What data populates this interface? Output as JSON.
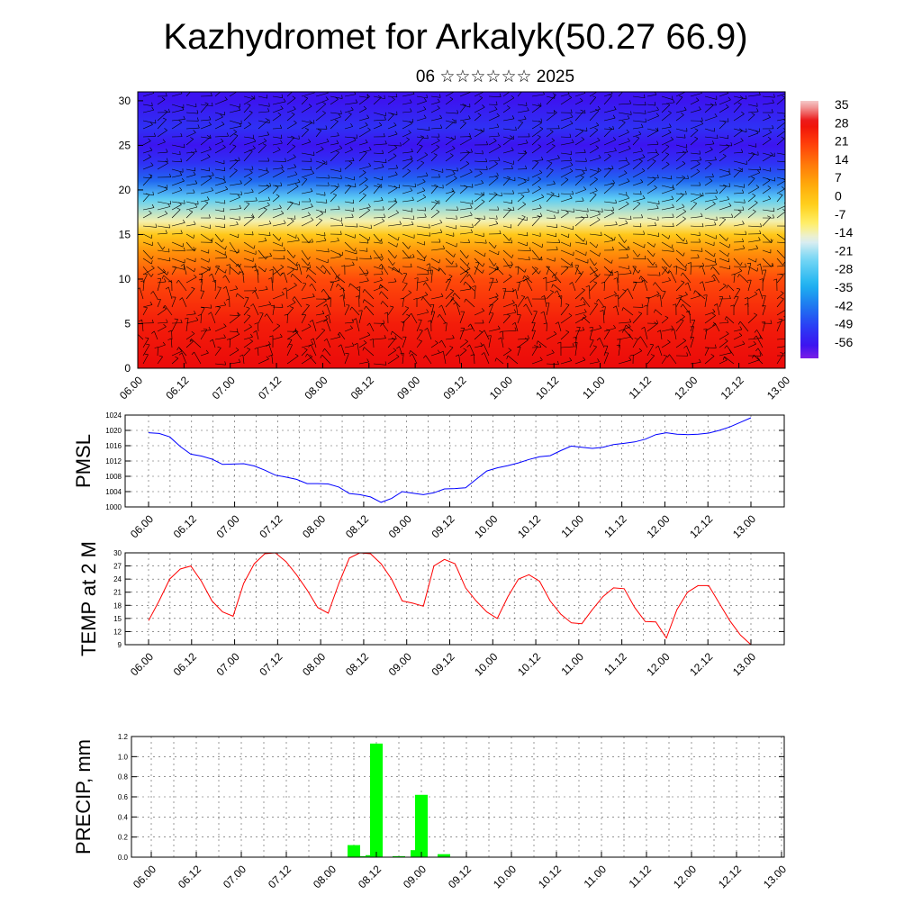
{
  "title": "Kazhydromet for Arkalyk(50.27 66.9)",
  "subtitle": "06 ☆☆☆☆☆☆ 2025",
  "time_labels": [
    "06.00",
    "06.12",
    "07.00",
    "07.12",
    "08.00",
    "08.12",
    "09.00",
    "09.12",
    "10.00",
    "10.12",
    "11.00",
    "11.12",
    "12.00",
    "12.12",
    "13.00"
  ],
  "chart_data": [
    {
      "type": "heatmap",
      "title": "",
      "xlabel": "",
      "ylabel": "",
      "x": [
        "06.00",
        "06.12",
        "07.00",
        "07.12",
        "08.00",
        "08.12",
        "09.00",
        "09.12",
        "10.00",
        "10.12",
        "11.00",
        "11.12",
        "12.00",
        "12.12",
        "13.00"
      ],
      "ylim": [
        0,
        31
      ],
      "yticks": [
        0,
        5,
        10,
        15,
        20,
        25,
        30
      ],
      "colorbar": {
        "labels": [
          "35",
          "28",
          "21",
          "14",
          "7",
          "0",
          "-7",
          "-14",
          "-21",
          "-28",
          "-35",
          "-42",
          "-49",
          "-56"
        ],
        "range": [
          -60,
          38
        ]
      },
      "temperature_profile": [
        {
          "height": 0,
          "value": 30
        },
        {
          "height": 5,
          "value": 27
        },
        {
          "height": 10,
          "value": 20
        },
        {
          "height": 13,
          "value": 10
        },
        {
          "height": 15,
          "value": 0
        },
        {
          "height": 16.5,
          "value": -12
        },
        {
          "height": 19,
          "value": -25
        },
        {
          "height": 21,
          "value": -42
        },
        {
          "height": 23,
          "value": -50
        },
        {
          "height": 25,
          "value": -55
        },
        {
          "height": 27,
          "value": -50
        },
        {
          "height": 30,
          "value": -55
        }
      ],
      "overlay": "wind barbs",
      "grid": false
    },
    {
      "type": "line",
      "ylabel": "PMSL",
      "ylim": [
        1000,
        1024
      ],
      "yticks": [
        "1000",
        "1004",
        "1008",
        "1012",
        "1016",
        "1020",
        "1024"
      ],
      "color": "#0000ff",
      "grid": true,
      "values": [
        1019.4,
        1019.2,
        1018.3,
        1015.8,
        1013.8,
        1013.3,
        1012.5,
        1011.1,
        1011.2,
        1011.3,
        1010.7,
        1009.6,
        1008.3,
        1007.8,
        1007.2,
        1006.1,
        1006.1,
        1006.0,
        1005.2,
        1003.5,
        1003.2,
        1002.6,
        1001.2,
        1002.2,
        1004.0,
        1003.6,
        1003.2,
        1003.7,
        1004.7,
        1004.8,
        1005.0,
        1007.2,
        1009.4,
        1010.2,
        1010.8,
        1011.5,
        1012.4,
        1013.1,
        1013.4,
        1014.7,
        1015.9,
        1015.6,
        1015.3,
        1015.6,
        1016.3,
        1016.6,
        1017.0,
        1017.7,
        1018.9,
        1019.4,
        1019.0,
        1018.9,
        1019.0,
        1019.3,
        1020.0,
        1020.9,
        1022.1,
        1023.3
      ]
    },
    {
      "type": "line",
      "ylabel": "TEMP at 2 M",
      "ylim": [
        9,
        30
      ],
      "yticks": [
        "9",
        "12",
        "15",
        "18",
        "21",
        "24",
        "27",
        "30"
      ],
      "color": "#ff0000",
      "grid": true,
      "values": [
        14.5,
        19.0,
        24.0,
        26.3,
        27.0,
        23.5,
        19.0,
        16.5,
        15.5,
        23.0,
        27.5,
        29.8,
        30.0,
        28.0,
        25.0,
        21.5,
        17.5,
        16.2,
        23.0,
        28.8,
        30.0,
        29.8,
        27.5,
        24.0,
        19.0,
        18.5,
        17.8,
        27.0,
        28.5,
        27.5,
        22.0,
        19.0,
        16.5,
        15.0,
        20.0,
        24.0,
        25.0,
        23.5,
        19.0,
        16.0,
        14.0,
        13.8,
        17.0,
        20.0,
        22.0,
        21.8,
        17.5,
        14.3,
        14.2,
        10.5,
        17.0,
        21.0,
        22.5,
        22.5,
        18.5,
        14.5,
        11.2,
        9.0
      ]
    },
    {
      "type": "bar",
      "ylabel": "PRECIP, mm",
      "ylim": [
        0,
        1.2
      ],
      "yticks": [
        "0.0",
        "0.2",
        "0.4",
        "0.6",
        "0.8",
        "1.0",
        "1.2"
      ],
      "color": "#00ff00",
      "grid": true,
      "bars": [
        {
          "x": 9.0,
          "value": 0.12
        },
        {
          "x": 9.3,
          "value": 0.01
        },
        {
          "x": 9.8,
          "value": 0.02
        },
        {
          "x": 10.0,
          "value": 1.13
        },
        {
          "x": 11.0,
          "value": 0.01
        },
        {
          "x": 11.8,
          "value": 0.07
        },
        {
          "x": 12.0,
          "value": 0.62
        },
        {
          "x": 13.0,
          "value": 0.03
        }
      ]
    }
  ]
}
